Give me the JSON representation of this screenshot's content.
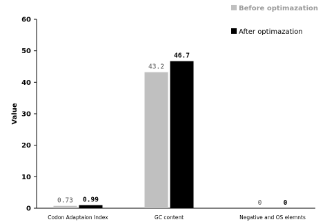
{
  "chart_data": {
    "type": "bar",
    "categories": [
      "Codon Adaptaion Index",
      "GC content",
      "Negative and OS elemnts"
    ],
    "series": [
      {
        "name": "Before optimazation",
        "values": [
          0.73,
          43.2,
          0
        ],
        "labels": [
          "0.73",
          "43.2",
          "0"
        ],
        "color": "#c0c0c0"
      },
      {
        "name": "After optimazation",
        "values": [
          0.99,
          46.7,
          0
        ],
        "labels": [
          "0.99",
          "46.7",
          "0"
        ],
        "color": "#000000"
      }
    ],
    "xlabel": "",
    "ylabel": "Value",
    "ylim": [
      0,
      60
    ],
    "yticks": [
      "0",
      "10",
      "20",
      "30",
      "40",
      "50",
      "60"
    ],
    "grid": false,
    "legend_position": "top-right"
  }
}
